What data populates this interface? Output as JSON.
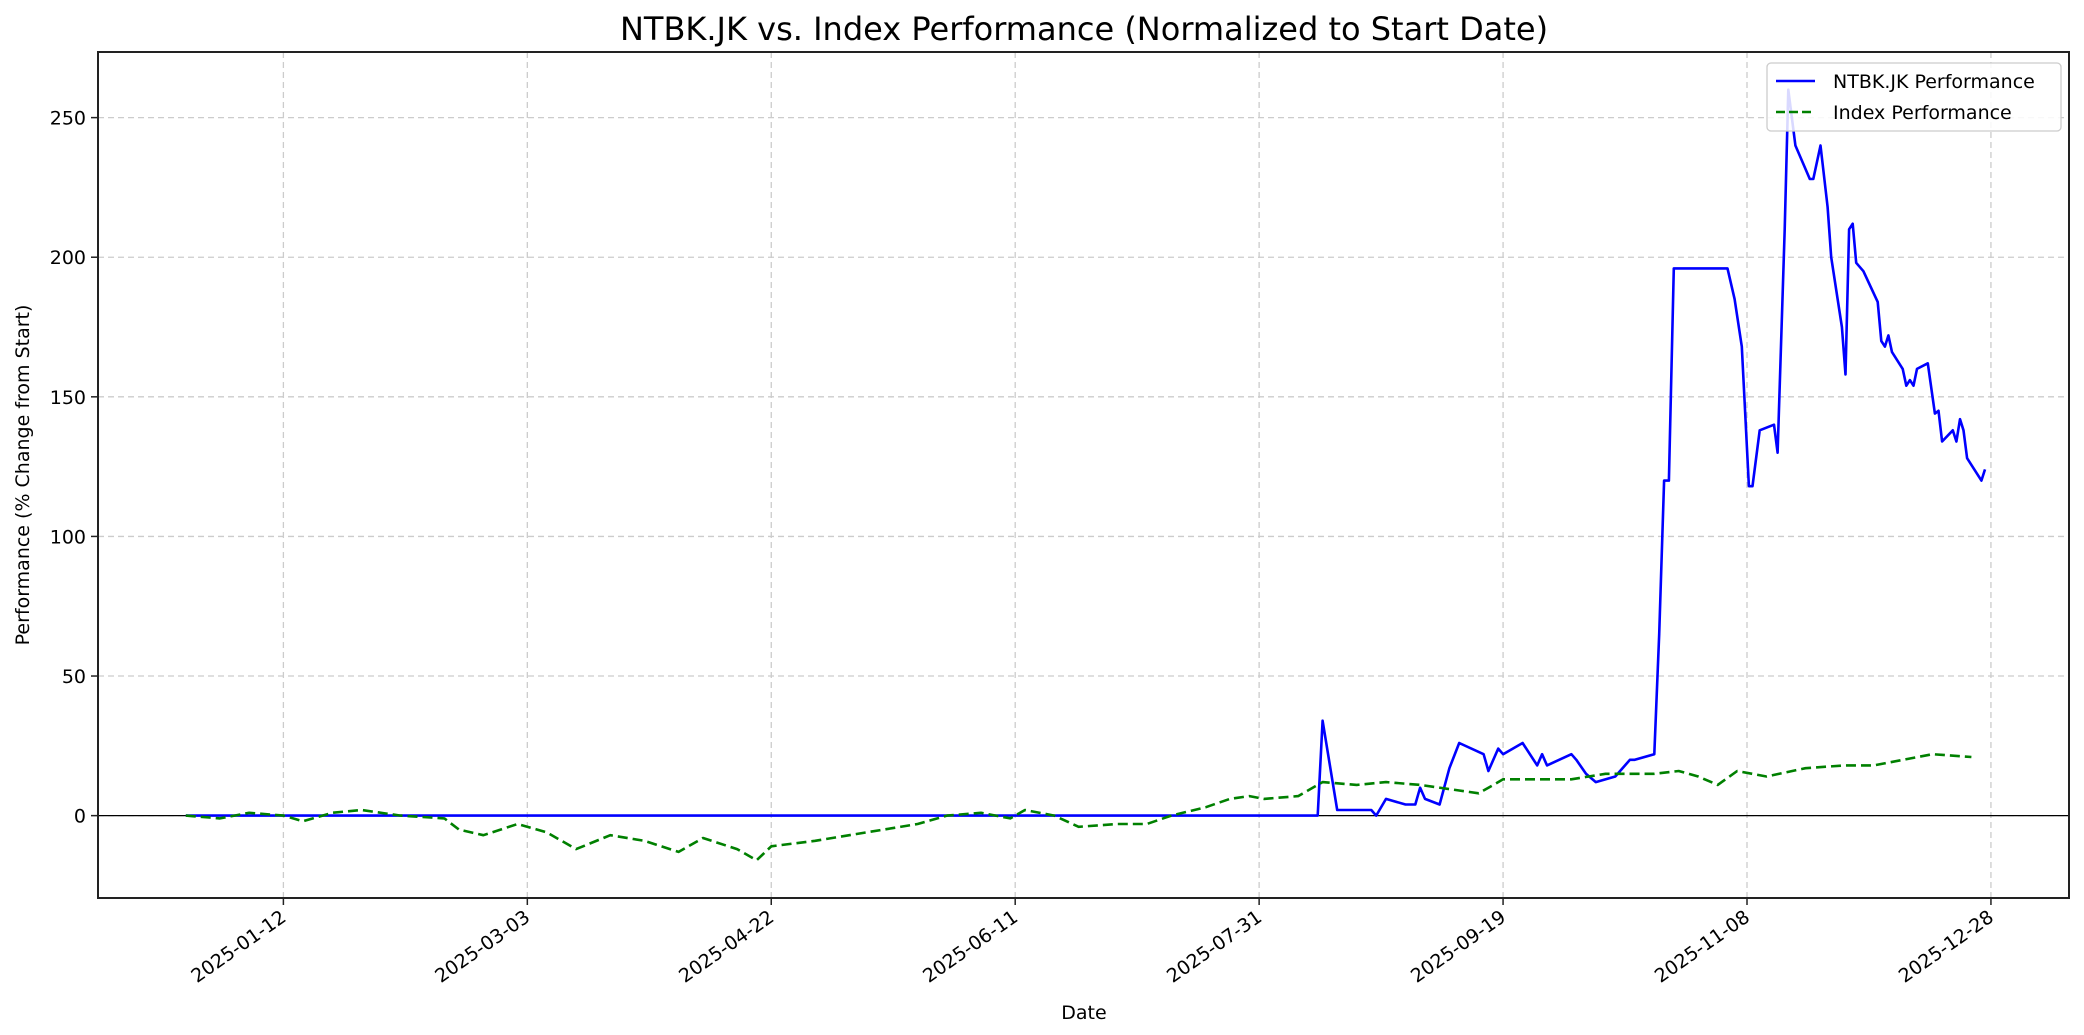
{
  "chart_data": {
    "type": "line",
    "title": "NTBK.JK vs. Index Performance (Normalized to Start Date)",
    "xlabel": "Date",
    "ylabel": "Performance (% Change from Start)",
    "x_ticks": [
      "2025-01-12",
      "2025-03-03",
      "2025-04-22",
      "2025-06-11",
      "2025-07-31",
      "2025-09-19",
      "2025-11-08",
      "2025-12-28"
    ],
    "y_ticks": [
      0,
      50,
      100,
      150,
      200,
      250
    ],
    "xlim": [
      "2024-12-05",
      "2026-01-13"
    ],
    "ylim": [
      -29.5,
      273.5
    ],
    "grid": true,
    "grid_style": "dashed",
    "reference_line_y": 0,
    "legend_position": "upper right",
    "legend": [
      "NTBK.JK Performance",
      "Index Performance"
    ],
    "series": [
      {
        "name": "NTBK.JK Performance",
        "color": "#0000ff",
        "style": "solid",
        "points": [
          [
            "2024-12-23",
            0
          ],
          [
            "2025-08-12",
            0
          ],
          [
            "2025-08-13",
            34
          ],
          [
            "2025-08-16",
            2
          ],
          [
            "2025-08-23",
            2
          ],
          [
            "2025-08-24",
            0
          ],
          [
            "2025-08-26",
            6
          ],
          [
            "2025-08-30",
            4
          ],
          [
            "2025-09-01",
            4
          ],
          [
            "2025-09-02",
            10
          ],
          [
            "2025-09-03",
            6
          ],
          [
            "2025-09-06",
            4
          ],
          [
            "2025-09-08",
            17
          ],
          [
            "2025-09-10",
            26
          ],
          [
            "2025-09-15",
            22
          ],
          [
            "2025-09-16",
            16
          ],
          [
            "2025-09-18",
            24
          ],
          [
            "2025-09-19",
            22
          ],
          [
            "2025-09-23",
            26
          ],
          [
            "2025-09-26",
            18
          ],
          [
            "2025-09-27",
            22
          ],
          [
            "2025-09-28",
            18
          ],
          [
            "2025-10-03",
            22
          ],
          [
            "2025-10-04",
            20
          ],
          [
            "2025-10-06",
            15
          ],
          [
            "2025-10-08",
            12
          ],
          [
            "2025-10-12",
            14
          ],
          [
            "2025-10-15",
            20
          ],
          [
            "2025-10-16",
            20
          ],
          [
            "2025-10-20",
            22
          ],
          [
            "2025-10-21",
            65
          ],
          [
            "2025-10-22",
            120
          ],
          [
            "2025-10-23",
            120
          ],
          [
            "2025-10-24",
            196
          ],
          [
            "2025-10-30",
            196
          ],
          [
            "2025-11-01",
            196
          ],
          [
            "2025-11-04",
            196
          ],
          [
            "2025-10-28",
            196
          ],
          [
            "2025-10-29",
            196
          ],
          [
            "2025-10-31",
            196
          ]
        ]
      },
      {
        "name": "Index Performance",
        "color": "#008000",
        "style": "dashed",
        "points": [
          [
            "2024-12-23",
            0
          ],
          [
            "2024-12-30",
            -1
          ],
          [
            "2025-01-05",
            1
          ],
          [
            "2025-01-12",
            0
          ],
          [
            "2025-01-16",
            -2
          ],
          [
            "2025-01-22",
            1
          ],
          [
            "2025-01-28",
            2
          ],
          [
            "2025-02-05",
            0
          ],
          [
            "2025-02-14",
            -1
          ],
          [
            "2025-02-17",
            -5
          ],
          [
            "2025-02-22",
            -7
          ],
          [
            "2025-03-01",
            -3
          ],
          [
            "2025-03-07",
            -6
          ],
          [
            "2025-03-13",
            -12
          ],
          [
            "2025-03-20",
            -7
          ],
          [
            "2025-03-27",
            -9
          ],
          [
            "2025-04-03",
            -13
          ],
          [
            "2025-04-08",
            -8
          ],
          [
            "2025-04-15",
            -12
          ],
          [
            "2025-04-19",
            -16
          ],
          [
            "2025-04-22",
            -11
          ],
          [
            "2025-05-01",
            -9
          ],
          [
            "2025-05-08",
            -7
          ],
          [
            "2025-05-15",
            -5
          ],
          [
            "2025-05-22",
            -3
          ],
          [
            "2025-05-28",
            0
          ],
          [
            "2025-06-04",
            1
          ],
          [
            "2025-06-10",
            -1
          ],
          [
            "2025-06-13",
            2
          ],
          [
            "2025-06-19",
            0
          ],
          [
            "2025-06-24",
            -4
          ],
          [
            "2025-07-02",
            -3
          ],
          [
            "2025-07-08",
            -3
          ],
          [
            "2025-07-13",
            0
          ],
          [
            "2025-07-20",
            3
          ],
          [
            "2025-07-25",
            6
          ],
          [
            "2025-07-29",
            7
          ],
          [
            "2025-08-01",
            6
          ],
          [
            "2025-08-08",
            7
          ],
          [
            "2025-08-13",
            12
          ],
          [
            "2025-08-20",
            11
          ],
          [
            "2025-08-26",
            12
          ],
          [
            "2025-09-02",
            11
          ],
          [
            "2025-09-10",
            9
          ],
          [
            "2025-09-14",
            8
          ],
          [
            "2025-09-19",
            13
          ],
          [
            "2025-09-25",
            13
          ],
          [
            "2025-10-03",
            13
          ],
          [
            "2025-10-10",
            15
          ],
          [
            "2025-10-20",
            15
          ],
          [
            "2025-10-25",
            16
          ],
          [
            "2025-10-29",
            14
          ],
          [
            "2025-11-02",
            11
          ],
          [
            "2025-11-06",
            16
          ],
          [
            "2025-11-12",
            14
          ],
          [
            "2025-11-20",
            17
          ],
          [
            "2025-11-28",
            18
          ],
          [
            "2025-12-04",
            18
          ],
          [
            "2025-12-10",
            20
          ],
          [
            "2025-12-16",
            22
          ],
          [
            "2025-12-24",
            21
          ]
        ]
      }
    ]
  }
}
